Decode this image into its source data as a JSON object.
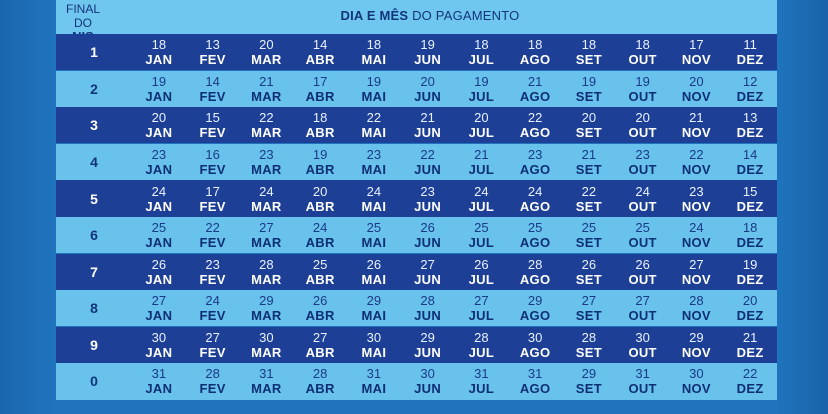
{
  "header": {
    "nis_line1": "FINAL DO",
    "nis_line2": "NIS",
    "payment_bold": "DIA E MÊS",
    "payment_rest": " DO PAGAMENTO"
  },
  "months": [
    "JAN",
    "FEV",
    "MAR",
    "ABR",
    "MAI",
    "JUN",
    "JUL",
    "AGO",
    "SET",
    "OUT",
    "NOV",
    "DEZ"
  ],
  "rows": [
    {
      "nis": "1",
      "days": [
        "18",
        "13",
        "20",
        "14",
        "18",
        "19",
        "18",
        "18",
        "18",
        "18",
        "17",
        "11"
      ]
    },
    {
      "nis": "2",
      "days": [
        "19",
        "14",
        "21",
        "17",
        "19",
        "20",
        "19",
        "21",
        "19",
        "19",
        "20",
        "12"
      ]
    },
    {
      "nis": "3",
      "days": [
        "20",
        "15",
        "22",
        "18",
        "22",
        "21",
        "20",
        "22",
        "20",
        "20",
        "21",
        "13"
      ]
    },
    {
      "nis": "4",
      "days": [
        "23",
        "16",
        "23",
        "19",
        "23",
        "22",
        "21",
        "23",
        "21",
        "23",
        "22",
        "14"
      ]
    },
    {
      "nis": "5",
      "days": [
        "24",
        "17",
        "24",
        "20",
        "24",
        "23",
        "24",
        "24",
        "22",
        "24",
        "23",
        "15"
      ]
    },
    {
      "nis": "6",
      "days": [
        "25",
        "22",
        "27",
        "24",
        "25",
        "26",
        "25",
        "25",
        "25",
        "25",
        "24",
        "18"
      ]
    },
    {
      "nis": "7",
      "days": [
        "26",
        "23",
        "28",
        "25",
        "26",
        "27",
        "26",
        "28",
        "26",
        "26",
        "27",
        "19"
      ]
    },
    {
      "nis": "8",
      "days": [
        "27",
        "24",
        "29",
        "26",
        "29",
        "28",
        "27",
        "29",
        "27",
        "27",
        "28",
        "20"
      ]
    },
    {
      "nis": "9",
      "days": [
        "30",
        "27",
        "30",
        "27",
        "30",
        "29",
        "28",
        "30",
        "28",
        "30",
        "29",
        "21"
      ]
    },
    {
      "nis": "0",
      "days": [
        "31",
        "28",
        "31",
        "28",
        "31",
        "30",
        "31",
        "31",
        "29",
        "31",
        "30",
        "22"
      ]
    }
  ],
  "colors": {
    "dark_row": "#1d3f95",
    "light_row": "#68c2ec",
    "background": "#1f74bd"
  }
}
